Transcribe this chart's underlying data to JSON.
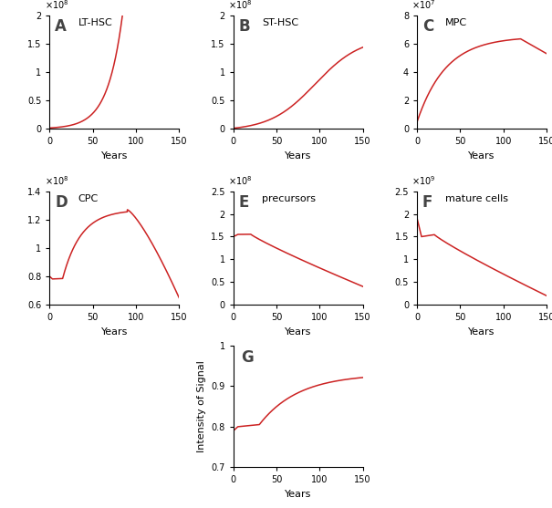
{
  "line_color": "#cc2222",
  "line_width": 1.1,
  "xlabel": "Years",
  "x_max": 150,
  "x_ticks": [
    0,
    50,
    100,
    150
  ],
  "panels": [
    {
      "label": "A",
      "title": "LT-HSC",
      "exponent": 8,
      "ylim": [
        0,
        200000000.0
      ],
      "yticks": [
        0,
        50000000.0,
        100000000.0,
        150000000.0,
        200000000.0
      ],
      "yticklabels": [
        "0",
        "0.5",
        "1",
        "1.5",
        "2"
      ]
    },
    {
      "label": "B",
      "title": "ST-HSC",
      "exponent": 8,
      "ylim": [
        0,
        200000000.0
      ],
      "yticks": [
        0,
        50000000.0,
        100000000.0,
        150000000.0,
        200000000.0
      ],
      "yticklabels": [
        "0",
        "0.5",
        "1",
        "1.5",
        "2"
      ]
    },
    {
      "label": "C",
      "title": "MPC",
      "exponent": 7,
      "ylim": [
        0,
        80000000.0
      ],
      "yticks": [
        0,
        20000000.0,
        40000000.0,
        60000000.0,
        80000000.0
      ],
      "yticklabels": [
        "0",
        "2",
        "4",
        "6",
        "8"
      ]
    },
    {
      "label": "D",
      "title": "CPC",
      "exponent": 8,
      "ylim": [
        60000000.0,
        140000000.0
      ],
      "yticks": [
        60000000.0,
        80000000.0,
        100000000.0,
        120000000.0,
        140000000.0
      ],
      "yticklabels": [
        "0.6",
        "0.8",
        "1",
        "1.2",
        "1.4"
      ]
    },
    {
      "label": "E",
      "title": "precursors",
      "exponent": 8,
      "ylim": [
        0,
        250000000.0
      ],
      "yticks": [
        0,
        50000000.0,
        100000000.0,
        150000000.0,
        200000000.0,
        250000000.0
      ],
      "yticklabels": [
        "0",
        "0.5",
        "1",
        "1.5",
        "2",
        "2.5"
      ]
    },
    {
      "label": "F",
      "title": "mature cells",
      "exponent": 9,
      "ylim": [
        0,
        2500000000.0
      ],
      "yticks": [
        0,
        500000000.0,
        1000000000.0,
        1500000000.0,
        2000000000.0,
        2500000000.0
      ],
      "yticklabels": [
        "0",
        "0.5",
        "1",
        "1.5",
        "2",
        "2.5"
      ]
    }
  ],
  "panel_G": {
    "label": "G",
    "ylabel": "Intensity of Signal",
    "ylim": [
      0.7,
      1.0
    ],
    "yticks": [
      0.7,
      0.8,
      0.9,
      1.0
    ],
    "yticklabels": [
      "0.7",
      "0.8",
      "0.9",
      "1"
    ]
  },
  "bg_color": "#ffffff",
  "tick_fontsize": 7,
  "label_fontsize": 8,
  "panel_label_fontsize": 12,
  "title_fontsize": 8
}
